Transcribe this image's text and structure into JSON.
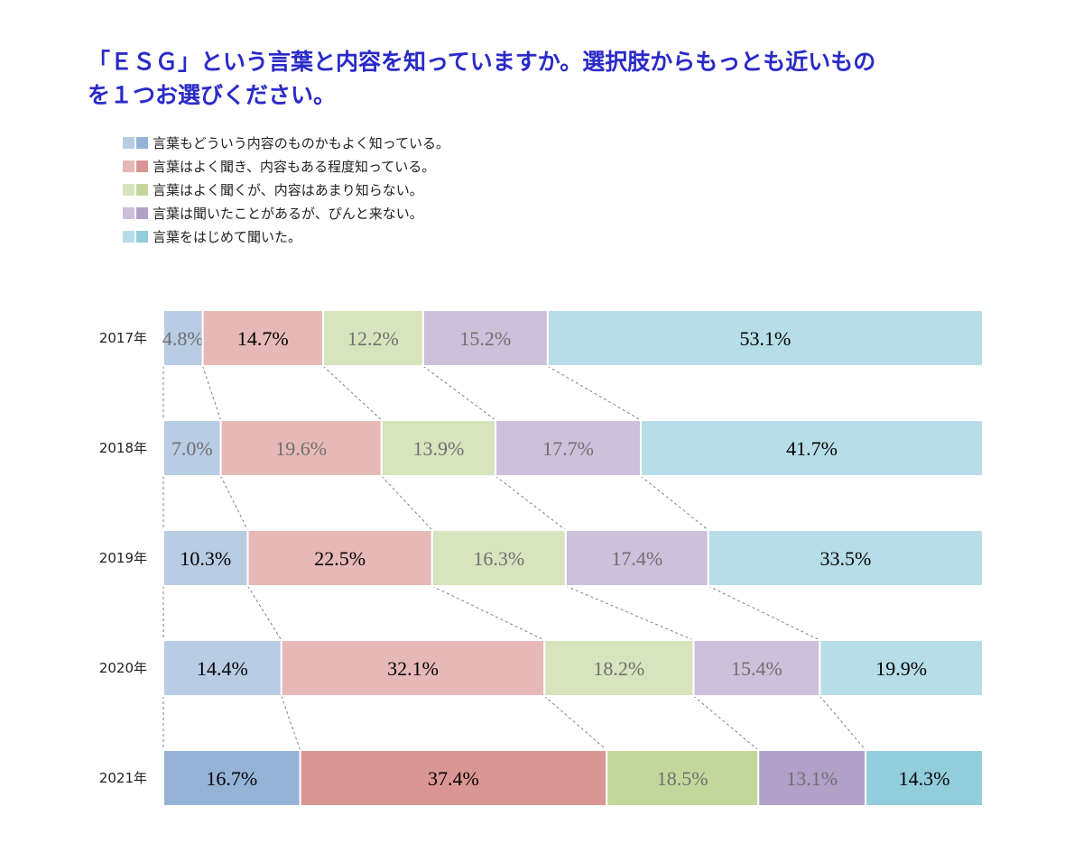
{
  "title": {
    "line1": "「ＥＳＧ」という言葉と内容を知っていますか。選択肢からもっとも近いもの",
    "line2": "を１つお選びください。"
  },
  "legend": [
    {
      "label": "言葉もどういう内容のものかもよく知っている。",
      "light": "#b8cce4",
      "dark": "#95b3d7"
    },
    {
      "label": "言葉はよく聞き、内容もある程度知っている。",
      "light": "#e6b9b8",
      "dark": "#da9694"
    },
    {
      "label": "言葉はよく聞くが、内容はあまり知らない。",
      "light": "#d7e4bd",
      "dark": "#c4d79b"
    },
    {
      "label": "言葉は聞いたことがあるが、ぴんと来ない。",
      "light": "#ccc0da",
      "dark": "#b1a0c7"
    },
    {
      "label": "言葉をはじめて聞いた。",
      "light": "#b7dee8",
      "dark": "#92cddc"
    }
  ],
  "chart_data": {
    "type": "bar",
    "orientation": "horizontal",
    "stacked": true,
    "percent": true,
    "categories": [
      "2017年",
      "2018年",
      "2019年",
      "2020年",
      "2021年"
    ],
    "series": [
      {
        "name": "言葉もどういう内容のものかもよく知っている。",
        "values": [
          4.8,
          7.0,
          10.3,
          14.4,
          16.7
        ],
        "labels": [
          "4.8%",
          "7.0%",
          "10.3%",
          "14.4%",
          "16.7%"
        ]
      },
      {
        "name": "言葉はよく聞き、内容もある程度知っている。",
        "values": [
          14.7,
          19.6,
          22.5,
          32.1,
          37.4
        ],
        "labels": [
          "14.7%",
          "19.6%",
          "22.5%",
          "32.1%",
          "37.4%"
        ]
      },
      {
        "name": "言葉はよく聞くが、内容はあまり知らない。",
        "values": [
          12.2,
          13.9,
          16.3,
          18.2,
          18.5
        ],
        "labels": [
          "12.2%",
          "13.9%",
          "16.3%",
          "18.2%",
          "18.5%"
        ]
      },
      {
        "name": "言葉は聞いたことがあるが、ぴんと来ない。",
        "values": [
          15.2,
          17.7,
          17.4,
          15.4,
          13.1
        ],
        "labels": [
          "15.2%",
          "17.7%",
          "17.4%",
          "15.4%",
          "13.1%"
        ]
      },
      {
        "name": "言葉をはじめて聞いた。",
        "values": [
          53.1,
          41.7,
          33.5,
          19.9,
          14.3
        ],
        "labels": [
          "53.1%",
          "41.7%",
          "33.5%",
          "19.9%",
          "14.3%"
        ]
      }
    ],
    "label_colors": [
      [
        "#707070",
        "#707070",
        "#000000",
        "#000000",
        "#000000"
      ],
      [
        "#000000",
        "#707070",
        "#000000",
        "#000000",
        "#000000"
      ],
      [
        "#707070",
        "#707070",
        "#707070",
        "#707070",
        "#707070"
      ],
      [
        "#707070",
        "#707070",
        "#707070",
        "#707070",
        "#707070"
      ],
      [
        "#000000",
        "#000000",
        "#000000",
        "#000000",
        "#000000"
      ]
    ],
    "highlight_category": "2021年",
    "series_lines": "dashed connectors between years",
    "grid": false
  }
}
